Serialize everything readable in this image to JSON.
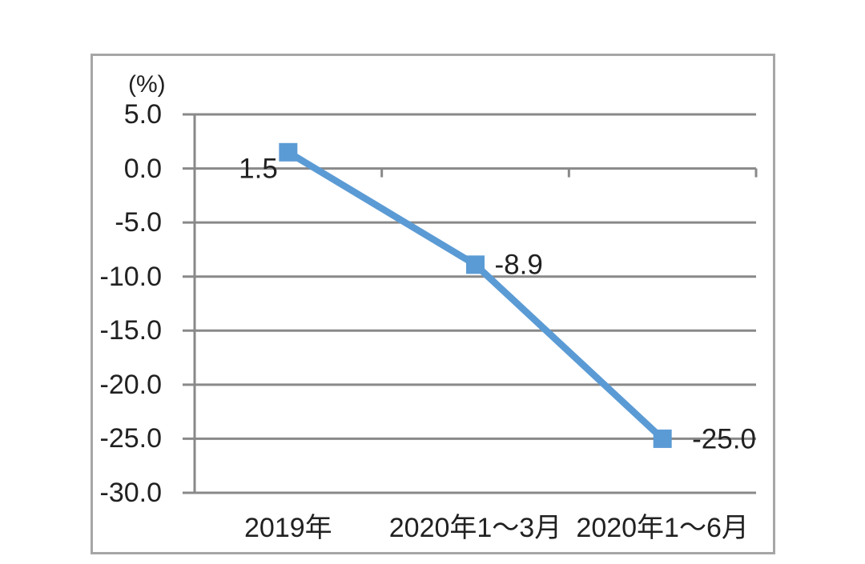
{
  "chart_data": {
    "type": "line",
    "title": "",
    "ylabel": "(%)",
    "xlabel": "",
    "categories": [
      "2019年",
      "2020年1～3月",
      "2020年1～6月"
    ],
    "series": [
      {
        "values": [
          1.5,
          -8.9,
          -25.0
        ]
      }
    ],
    "data_labels": [
      "1.5",
      "-8.9",
      "-25.0"
    ],
    "ytick_labels": [
      "5.0",
      "0.0",
      "-5.0",
      "-10.0",
      "-15.0",
      "-20.0",
      "-25.0",
      "-30.0"
    ],
    "yticks": [
      5,
      0,
      -5,
      -10,
      -15,
      -20,
      -25,
      -30
    ],
    "ylim": [
      -30,
      5
    ],
    "grid": true,
    "legend": "none",
    "marker": "square",
    "colors": {
      "line": "#5b9bd5",
      "marker": "#5b9bd5",
      "gridline": "#898989",
      "axis": "#898989",
      "frame": "#a6a6a6",
      "text": "#212121",
      "background": "#ffffff"
    }
  }
}
